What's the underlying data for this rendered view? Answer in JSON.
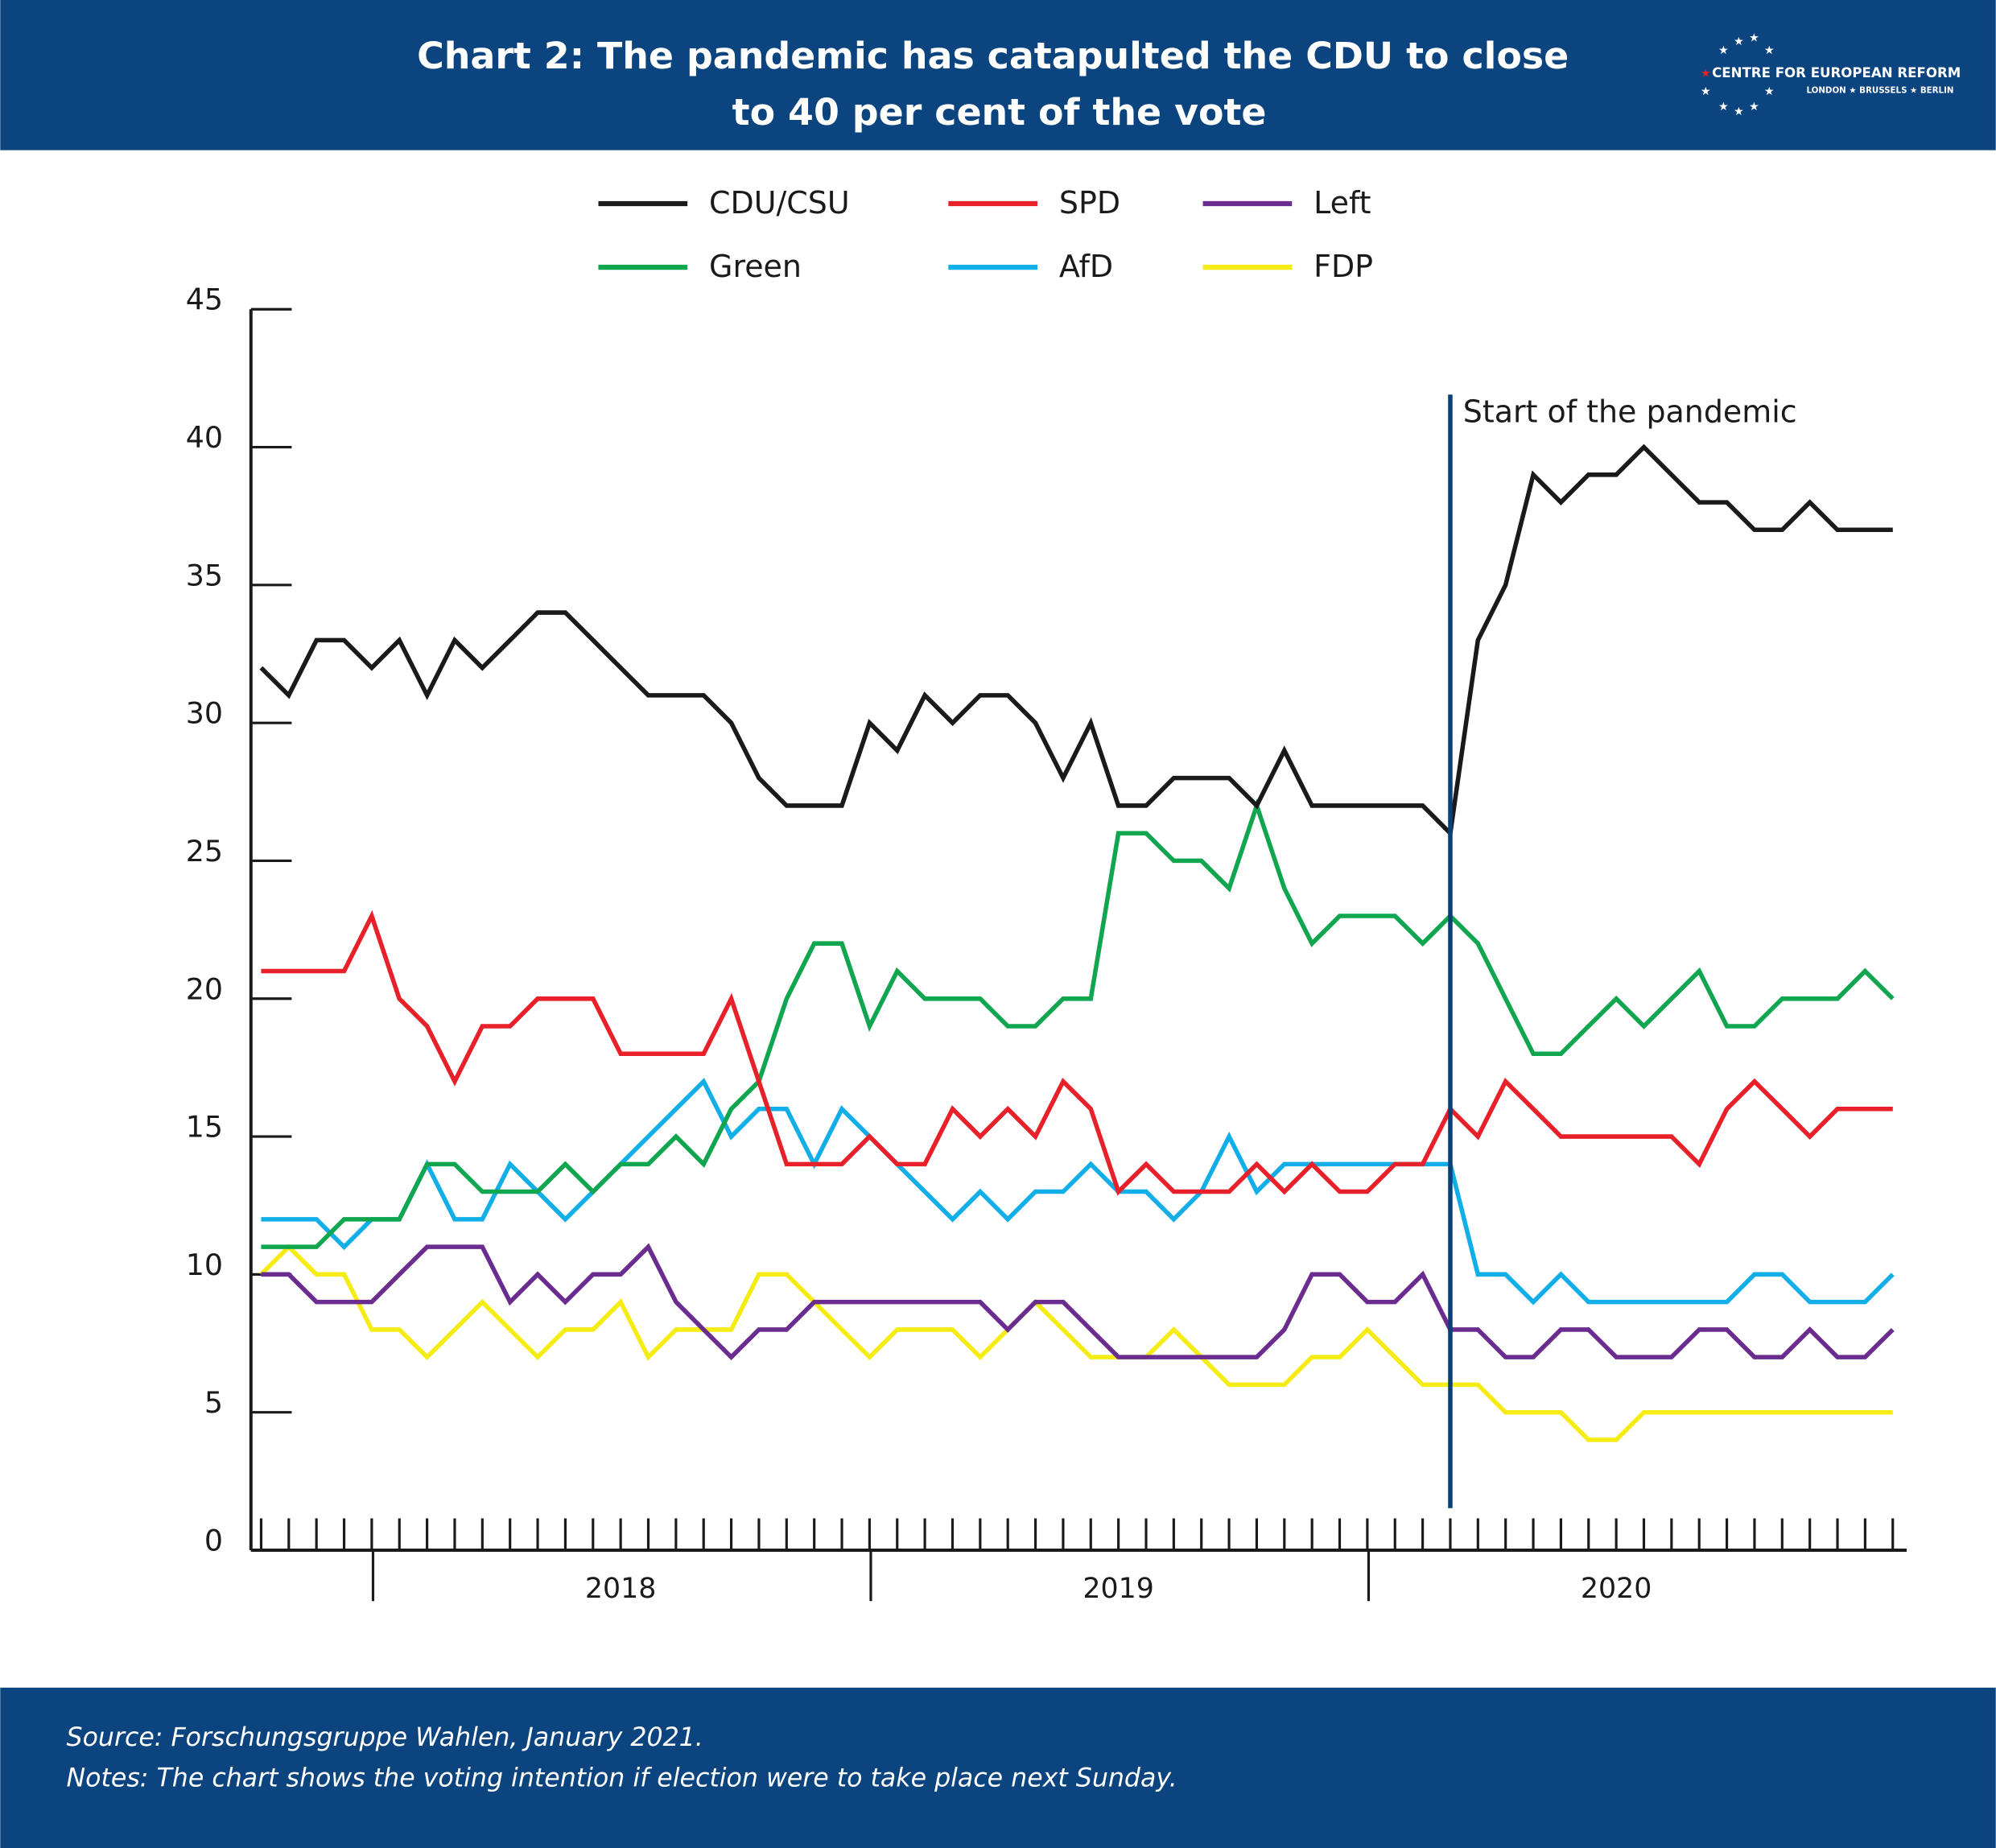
{
  "header": {
    "title_lines": [
      "Chart 2: The pandemic has catapulted the CDU to close",
      "to 40 per cent of the vote"
    ],
    "logo": {
      "name": "CENTRE FOR EUROPEAN REFORM",
      "cities": "LONDON ★ BRUSSELS ★ BERLIN"
    }
  },
  "chart_data": {
    "type": "line",
    "categories": [
      null,
      null,
      null,
      null,
      null,
      null,
      null,
      null,
      null,
      null,
      null,
      null,
      null,
      null,
      null,
      null,
      null,
      null,
      null,
      null,
      null,
      null,
      null,
      null,
      null,
      null,
      null,
      null,
      null,
      null,
      null,
      null,
      null,
      null,
      null,
      null,
      null,
      null,
      null,
      null,
      null,
      null,
      null,
      null,
      null,
      null,
      null,
      null,
      null,
      null,
      null,
      null,
      null,
      null,
      null,
      null,
      null,
      null,
      null,
      null
    ],
    "periods": [
      {
        "label": "2018",
        "start": 4,
        "end": 22
      },
      {
        "label": "2019",
        "start": 22,
        "end": 40
      },
      {
        "label": "2020",
        "start": 40,
        "end": 58
      }
    ],
    "series": [
      {
        "name": "CDU/CSU",
        "color": "#1a1a1a",
        "values": [
          32,
          31,
          33,
          33,
          32,
          33,
          31,
          33,
          32,
          33,
          34,
          34,
          33,
          32,
          31,
          31,
          31,
          30,
          28,
          27,
          27,
          27,
          30,
          29,
          31,
          30,
          31,
          31,
          30,
          28,
          30,
          27,
          27,
          28,
          28,
          28,
          27,
          29,
          27,
          27,
          27,
          27,
          27,
          26,
          33,
          35,
          39,
          38,
          39,
          39,
          40,
          39,
          38,
          38,
          37,
          37,
          38,
          37,
          37,
          37
        ]
      },
      {
        "name": "SPD",
        "color": "#e8202a",
        "values": [
          21,
          21,
          21,
          21,
          23,
          20,
          19,
          17,
          19,
          19,
          20,
          20,
          20,
          18,
          18,
          18,
          18,
          20,
          17,
          14,
          14,
          14,
          15,
          14,
          14,
          16,
          15,
          16,
          15,
          17,
          16,
          13,
          14,
          13,
          13,
          13,
          14,
          13,
          14,
          13,
          13,
          14,
          14,
          16,
          15,
          17,
          16,
          15,
          15,
          15,
          15,
          15,
          14,
          16,
          17,
          16,
          15,
          16,
          16,
          16
        ]
      },
      {
        "name": "Left",
        "color": "#6a2c8f",
        "values": [
          10,
          10,
          9,
          9,
          9,
          10,
          11,
          11,
          11,
          9,
          10,
          9,
          10,
          10,
          11,
          9,
          8,
          7,
          8,
          8,
          9,
          9,
          9,
          9,
          9,
          9,
          9,
          8,
          9,
          9,
          8,
          7,
          7,
          7,
          7,
          7,
          7,
          8,
          10,
          10,
          9,
          9,
          10,
          8,
          8,
          7,
          7,
          8,
          8,
          7,
          7,
          7,
          8,
          8,
          7,
          7,
          8,
          7,
          7,
          8
        ]
      },
      {
        "name": "Green",
        "color": "#10a650",
        "values": [
          11,
          11,
          11,
          12,
          12,
          12,
          14,
          14,
          13,
          13,
          13,
          14,
          13,
          14,
          14,
          15,
          14,
          16,
          17,
          20,
          22,
          22,
          19,
          21,
          20,
          20,
          20,
          19,
          19,
          20,
          20,
          26,
          26,
          25,
          25,
          24,
          27,
          24,
          22,
          23,
          23,
          23,
          22,
          23,
          22,
          20,
          18,
          18,
          19,
          20,
          19,
          20,
          21,
          19,
          19,
          20,
          20,
          20,
          21,
          20
        ]
      },
      {
        "name": "AfD",
        "color": "#11aee8",
        "values": [
          12,
          12,
          12,
          11,
          12,
          12,
          14,
          12,
          12,
          14,
          13,
          12,
          13,
          14,
          15,
          16,
          17,
          15,
          16,
          16,
          14,
          16,
          15,
          14,
          13,
          12,
          13,
          12,
          13,
          13,
          14,
          13,
          13,
          12,
          13,
          15,
          13,
          14,
          14,
          14,
          14,
          14,
          14,
          14,
          10,
          10,
          9,
          10,
          9,
          9,
          9,
          9,
          9,
          9,
          10,
          10,
          9,
          9,
          9,
          10
        ]
      },
      {
        "name": "FDP",
        "color": "#f5ec16",
        "values": [
          10,
          11,
          10,
          10,
          8,
          8,
          7,
          8,
          9,
          8,
          7,
          8,
          8,
          9,
          7,
          8,
          8,
          8,
          10,
          10,
          9,
          8,
          7,
          8,
          8,
          8,
          7,
          8,
          9,
          8,
          7,
          7,
          7,
          8,
          7,
          6,
          6,
          6,
          7,
          7,
          8,
          7,
          6,
          6,
          6,
          5,
          5,
          5,
          4,
          4,
          5,
          5,
          5,
          5,
          5,
          5,
          5,
          5,
          5,
          5
        ]
      }
    ],
    "annotation": {
      "text": "Start of the pandemic",
      "at": 43,
      "color": "#0b3f7a"
    },
    "ylim": [
      0,
      45
    ],
    "yticks": [
      0,
      5,
      10,
      15,
      20,
      25,
      30,
      35,
      40,
      45
    ]
  },
  "footer": {
    "source": "Source: Forschungsgruppe Wahlen, January 2021.",
    "notes": "Notes: The chart shows the voting intention if election were to take place next Sunday."
  }
}
